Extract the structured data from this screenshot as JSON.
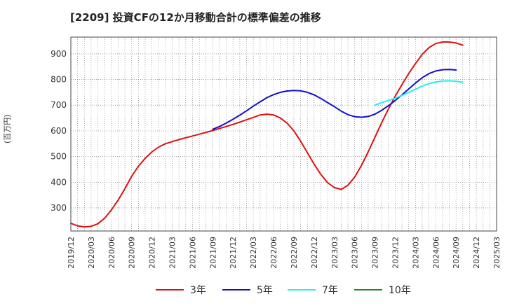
{
  "title": "[2209]  投資CFの12か月移動合計の標準偏差の推移",
  "ylabel_text": "(百万円)",
  "chart_data": {
    "type": "line",
    "title": "[2209]  投資CFの12か月移動合計の標準偏差の推移",
    "xlabel": "",
    "ylabel": "(百万円)",
    "x_ticks": [
      "2019/12",
      "2020/03",
      "2020/06",
      "2020/09",
      "2020/12",
      "2021/03",
      "2021/06",
      "2021/09",
      "2021/12",
      "2022/03",
      "2022/06",
      "2022/09",
      "2022/12",
      "2023/03",
      "2023/06",
      "2023/09",
      "2023/12",
      "2024/03",
      "2024/06",
      "2024/09",
      "2024/12",
      "2025/03"
    ],
    "y_ticks": [
      300,
      400,
      500,
      600,
      700,
      800,
      900
    ],
    "ylim": [
      210,
      965
    ],
    "grid": true,
    "legend_position": "bottom",
    "series": [
      {
        "name": "3年",
        "color": "#dd1111",
        "points": [
          [
            "2019/12",
            240
          ],
          [
            "2020/01",
            230
          ],
          [
            "2020/02",
            226
          ],
          [
            "2020/03",
            228
          ],
          [
            "2020/04",
            238
          ],
          [
            "2020/05",
            260
          ],
          [
            "2020/06",
            292
          ],
          [
            "2020/07",
            330
          ],
          [
            "2020/08",
            375
          ],
          [
            "2020/09",
            423
          ],
          [
            "2020/10",
            462
          ],
          [
            "2020/11",
            493
          ],
          [
            "2020/12",
            518
          ],
          [
            "2021/01",
            537
          ],
          [
            "2021/02",
            550
          ],
          [
            "2021/03",
            558
          ],
          [
            "2021/04",
            566
          ],
          [
            "2021/05",
            573
          ],
          [
            "2021/06",
            580
          ],
          [
            "2021/07",
            587
          ],
          [
            "2021/08",
            594
          ],
          [
            "2021/09",
            601
          ],
          [
            "2021/10",
            609
          ],
          [
            "2021/11",
            617
          ],
          [
            "2021/12",
            625
          ],
          [
            "2022/01",
            634
          ],
          [
            "2022/02",
            643
          ],
          [
            "2022/03",
            652
          ],
          [
            "2022/04",
            662
          ],
          [
            "2022/05",
            665
          ],
          [
            "2022/06",
            662
          ],
          [
            "2022/07",
            650
          ],
          [
            "2022/08",
            630
          ],
          [
            "2022/09",
            600
          ],
          [
            "2022/10",
            560
          ],
          [
            "2022/11",
            515
          ],
          [
            "2022/12",
            470
          ],
          [
            "2023/01",
            430
          ],
          [
            "2023/02",
            398
          ],
          [
            "2023/03",
            379
          ],
          [
            "2023/04",
            372
          ],
          [
            "2023/05",
            388
          ],
          [
            "2023/06",
            420
          ],
          [
            "2023/07",
            465
          ],
          [
            "2023/08",
            518
          ],
          [
            "2023/09",
            575
          ],
          [
            "2023/10",
            632
          ],
          [
            "2023/11",
            685
          ],
          [
            "2023/12",
            735
          ],
          [
            "2024/01",
            780
          ],
          [
            "2024/02",
            823
          ],
          [
            "2024/03",
            862
          ],
          [
            "2024/04",
            898
          ],
          [
            "2024/05",
            924
          ],
          [
            "2024/06",
            940
          ],
          [
            "2024/07",
            946
          ],
          [
            "2024/08",
            946
          ],
          [
            "2024/09",
            942
          ],
          [
            "2024/10",
            934
          ]
        ]
      },
      {
        "name": "5年",
        "color": "#1111cc",
        "points": [
          [
            "2021/09",
            606
          ],
          [
            "2021/10",
            617
          ],
          [
            "2021/11",
            630
          ],
          [
            "2021/12",
            645
          ],
          [
            "2022/01",
            661
          ],
          [
            "2022/02",
            678
          ],
          [
            "2022/03",
            696
          ],
          [
            "2022/04",
            713
          ],
          [
            "2022/05",
            729
          ],
          [
            "2022/06",
            741
          ],
          [
            "2022/07",
            750
          ],
          [
            "2022/08",
            755
          ],
          [
            "2022/09",
            757
          ],
          [
            "2022/10",
            756
          ],
          [
            "2022/11",
            750
          ],
          [
            "2022/12",
            740
          ],
          [
            "2023/01",
            726
          ],
          [
            "2023/02",
            710
          ],
          [
            "2023/03",
            694
          ],
          [
            "2023/04",
            677
          ],
          [
            "2023/05",
            663
          ],
          [
            "2023/06",
            655
          ],
          [
            "2023/07",
            653
          ],
          [
            "2023/08",
            656
          ],
          [
            "2023/09",
            665
          ],
          [
            "2023/10",
            680
          ],
          [
            "2023/11",
            698
          ],
          [
            "2023/12",
            718
          ],
          [
            "2024/01",
            740
          ],
          [
            "2024/02",
            763
          ],
          [
            "2024/03",
            786
          ],
          [
            "2024/04",
            807
          ],
          [
            "2024/05",
            823
          ],
          [
            "2024/06",
            833
          ],
          [
            "2024/07",
            838
          ],
          [
            "2024/08",
            839
          ],
          [
            "2024/09",
            837
          ]
        ]
      },
      {
        "name": "7年",
        "color": "#22eeee",
        "points": [
          [
            "2023/09",
            700
          ],
          [
            "2023/10",
            710
          ],
          [
            "2023/11",
            718
          ],
          [
            "2023/12",
            727
          ],
          [
            "2024/01",
            738
          ],
          [
            "2024/02",
            750
          ],
          [
            "2024/03",
            762
          ],
          [
            "2024/04",
            774
          ],
          [
            "2024/05",
            784
          ],
          [
            "2024/06",
            790
          ],
          [
            "2024/07",
            794
          ],
          [
            "2024/08",
            795
          ],
          [
            "2024/09",
            793
          ],
          [
            "2024/10",
            789
          ]
        ]
      },
      {
        "name": "10年",
        "color": "#228822",
        "points": []
      }
    ]
  }
}
